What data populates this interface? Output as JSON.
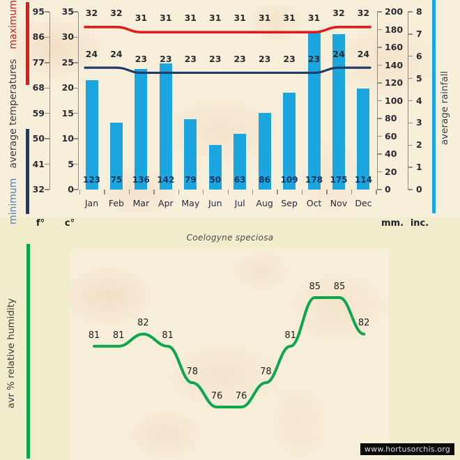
{
  "page": {
    "background": "#f1edcc",
    "panel_background": "#f8efdb"
  },
  "title": "Coelogyne speciosa",
  "branding": {
    "website": "www.hortusorchis.org"
  },
  "chart_data": [
    {
      "type": "bar",
      "subtype": "climate chart: rainfall bars with max/min temperature lines",
      "categories": [
        "Jan",
        "Feb",
        "Mar",
        "Apr",
        "May",
        "Jun",
        "Jul",
        "Aug",
        "Sep",
        "Oct",
        "Nov",
        "Dec"
      ],
      "series": [
        {
          "name": "maximum temperature",
          "type": "line",
          "unit": "c°",
          "color": "#e01d1c",
          "values": [
            32,
            32,
            31,
            31,
            31,
            31,
            31,
            31,
            31,
            31,
            32,
            32
          ]
        },
        {
          "name": "minimum temperature",
          "type": "line",
          "unit": "c°",
          "color": "#1e3c66",
          "values": [
            24,
            24,
            23,
            23,
            23,
            23,
            23,
            23,
            23,
            23,
            24,
            24
          ]
        },
        {
          "name": "average rainfall",
          "type": "bar",
          "unit": "mm",
          "color": "#1ba6e0",
          "values": [
            123,
            75,
            136,
            142,
            79,
            50,
            63,
            86,
            109,
            178,
            175,
            114
          ]
        }
      ],
      "axes": {
        "fahrenheit": {
          "label": "f°",
          "ticks": [
            95,
            86,
            77,
            68,
            59,
            50,
            41,
            32
          ]
        },
        "celsius": {
          "label": "c°",
          "ticks": [
            35,
            30,
            25,
            20,
            15,
            10,
            5,
            0
          ],
          "range": [
            0,
            35
          ]
        },
        "millimeters": {
          "label": "mm.",
          "ticks": [
            200,
            180,
            160,
            140,
            120,
            100,
            80,
            60,
            40,
            20,
            0
          ],
          "range": [
            0,
            200
          ]
        },
        "inches": {
          "label": "inc.",
          "ticks": [
            8,
            7,
            6,
            5,
            4,
            3,
            2,
            1,
            0
          ],
          "range": [
            0,
            8
          ]
        }
      },
      "left_axis_title": {
        "min_word": "minimum",
        "min_color": "#4d80bd",
        "mid_words": "average temperatures",
        "mid_color": "#3c3c3c",
        "max_word": "maximum",
        "max_color": "#cc201d"
      },
      "right_axis_title": "average rainfall",
      "grid": false,
      "legend_position": "none"
    },
    {
      "type": "line",
      "name": "average relative humidity",
      "ylabel": "avr % relative humidity",
      "color": "#0ca64d",
      "values": [
        81,
        81,
        82,
        81,
        78,
        76,
        76,
        78,
        81,
        85,
        85,
        82
      ],
      "x_alignment": "monthly, aligned with Jan-Dec of top chart (no month labels shown)"
    }
  ]
}
